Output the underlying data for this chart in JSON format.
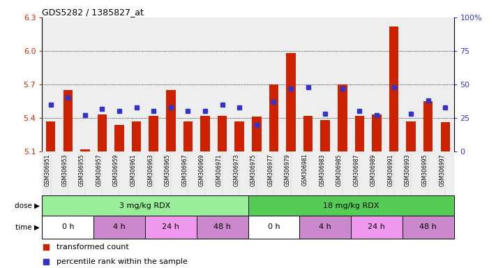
{
  "title": "GDS5282 / 1385827_at",
  "samples": [
    "GSM306951",
    "GSM306953",
    "GSM306955",
    "GSM306957",
    "GSM306959",
    "GSM306961",
    "GSM306963",
    "GSM306965",
    "GSM306967",
    "GSM306969",
    "GSM306971",
    "GSM306973",
    "GSM306975",
    "GSM306977",
    "GSM306979",
    "GSM306981",
    "GSM306983",
    "GSM306985",
    "GSM306987",
    "GSM306989",
    "GSM306991",
    "GSM306993",
    "GSM306995",
    "GSM306997"
  ],
  "bar_values": [
    5.37,
    5.65,
    5.12,
    5.43,
    5.34,
    5.37,
    5.42,
    5.65,
    5.37,
    5.42,
    5.42,
    5.37,
    5.41,
    5.7,
    5.98,
    5.42,
    5.38,
    5.7,
    5.42,
    5.43,
    6.22,
    5.37,
    5.55,
    5.36
  ],
  "percentile_values": [
    35,
    40,
    27,
    32,
    30,
    33,
    30,
    33,
    30,
    30,
    35,
    33,
    20,
    37,
    47,
    48,
    28,
    47,
    30,
    27,
    48,
    28,
    38,
    33
  ],
  "y_min": 5.1,
  "y_max": 6.3,
  "y_ticks": [
    5.1,
    5.4,
    5.7,
    6.0,
    6.3
  ],
  "y_right_ticks": [
    0,
    25,
    50,
    75,
    100
  ],
  "gridlines": [
    5.4,
    5.7,
    6.0
  ],
  "bar_color": "#CC2200",
  "blue_color": "#3333CC",
  "dose_groups": [
    {
      "label": "3 mg/kg RDX",
      "start": 0,
      "end": 12,
      "color": "#99EE99"
    },
    {
      "label": "18 mg/kg RDX",
      "start": 12,
      "end": 24,
      "color": "#55CC55"
    }
  ],
  "time_groups": [
    {
      "label": "0 h",
      "start": 0,
      "end": 3,
      "color": "#FFFFFF"
    },
    {
      "label": "4 h",
      "start": 3,
      "end": 6,
      "color": "#CC88CC"
    },
    {
      "label": "24 h",
      "start": 6,
      "end": 9,
      "color": "#EE99EE"
    },
    {
      "label": "48 h",
      "start": 9,
      "end": 12,
      "color": "#CC88CC"
    },
    {
      "label": "0 h",
      "start": 12,
      "end": 15,
      "color": "#FFFFFF"
    },
    {
      "label": "4 h",
      "start": 15,
      "end": 18,
      "color": "#CC88CC"
    },
    {
      "label": "24 h",
      "start": 18,
      "end": 21,
      "color": "#EE99EE"
    },
    {
      "label": "48 h",
      "start": 21,
      "end": 24,
      "color": "#CC88CC"
    }
  ],
  "legend_items": [
    {
      "label": "transformed count",
      "color": "#CC2200"
    },
    {
      "label": "percentile rank within the sample",
      "color": "#3333CC"
    }
  ],
  "chart_bg": "#EEEEEE",
  "fig_bg": "#FFFFFF"
}
